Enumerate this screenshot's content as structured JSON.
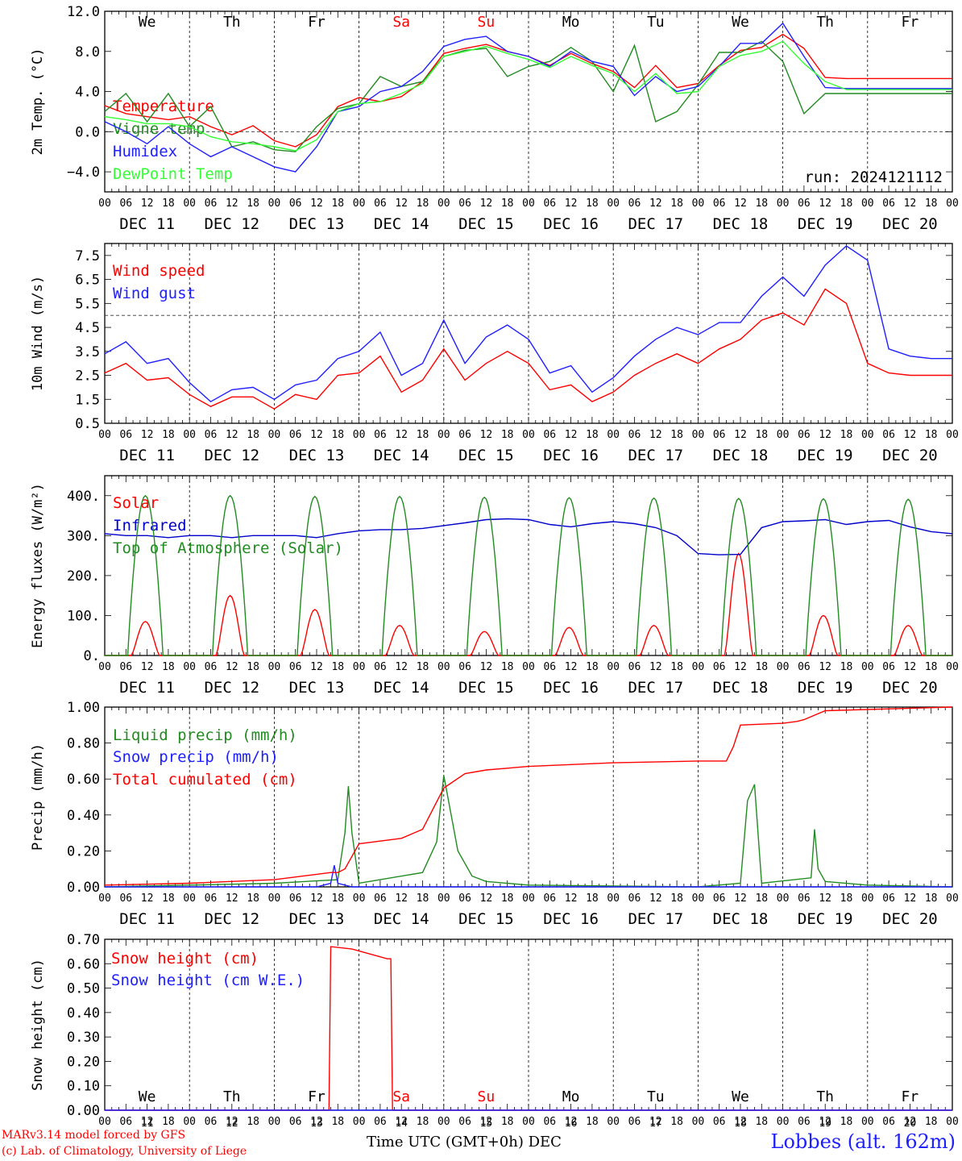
{
  "chart_data": [
    {
      "type": "line",
      "ylabel": "2m Temp. (°C)",
      "ylim": [
        -6,
        12
      ],
      "yticks": [
        -4.0,
        0.0,
        4.0,
        8.0,
        12.0
      ],
      "ytick_labels": [
        "−4.0",
        "0.0",
        "4.0",
        "8.0",
        "12.0"
      ],
      "reference_line": 0,
      "annotation": "run: 2024121112",
      "weekday_row": "top",
      "series": [
        {
          "name": "Temperature",
          "color": "#ff0000",
          "x": [
            0,
            6,
            12,
            18,
            24,
            30,
            36,
            42,
            48,
            54,
            60,
            66,
            72,
            78,
            84,
            90,
            96,
            102,
            108,
            114,
            120,
            126,
            132,
            138,
            144,
            150,
            156,
            162,
            168,
            174,
            180,
            186,
            192,
            198,
            204,
            210,
            216,
            222,
            228,
            234,
            240
          ],
          "values": [
            2.6,
            1.8,
            1.5,
            1.2,
            1.5,
            0.5,
            -0.3,
            0.6,
            -0.9,
            -1.5,
            -0.3,
            2.5,
            3.4,
            3.0,
            3.5,
            5.0,
            7.8,
            8.3,
            8.7,
            8.0,
            7.5,
            6.6,
            7.8,
            6.8,
            6.0,
            4.4,
            6.6,
            4.4,
            4.8,
            6.6,
            8.1,
            8.4,
            9.7,
            8.3,
            5.4,
            5.3,
            5.3,
            5.3,
            5.3,
            5.3,
            5.3
          ]
        },
        {
          "name": "Vigne temp",
          "color": "#228b22",
          "x": [
            0,
            6,
            12,
            18,
            24,
            30,
            36,
            42,
            48,
            54,
            60,
            66,
            72,
            78,
            84,
            90,
            96,
            102,
            108,
            114,
            120,
            126,
            132,
            138,
            144,
            150,
            156,
            162,
            168,
            174,
            180,
            186,
            192,
            198,
            204,
            210,
            216,
            222,
            228,
            234,
            240
          ],
          "values": [
            2.0,
            3.8,
            1.0,
            3.8,
            0.5,
            2.5,
            -1.5,
            -1.0,
            -1.8,
            -2.0,
            0.5,
            2.3,
            2.8,
            5.5,
            4.5,
            5.0,
            7.5,
            8.1,
            8.3,
            5.5,
            6.5,
            7.0,
            8.4,
            7.0,
            4.0,
            8.6,
            1.0,
            2.0,
            4.7,
            7.9,
            7.9,
            9.0,
            7.0,
            1.8,
            3.8,
            3.8,
            3.8,
            3.8,
            3.8,
            3.8,
            3.8
          ]
        },
        {
          "name": "Humidex",
          "color": "#2020ff",
          "x": [
            0,
            6,
            12,
            18,
            24,
            30,
            36,
            42,
            48,
            54,
            60,
            66,
            72,
            78,
            84,
            90,
            96,
            102,
            108,
            114,
            120,
            126,
            132,
            138,
            144,
            150,
            156,
            162,
            168,
            174,
            180,
            186,
            192,
            198,
            204,
            210,
            216,
            222,
            228,
            234,
            240
          ],
          "values": [
            1.0,
            0.0,
            -1.2,
            0.5,
            -1.2,
            -2.5,
            -1.5,
            -2.5,
            -3.5,
            -4.0,
            -1.5,
            2.0,
            2.5,
            4.0,
            4.5,
            6.0,
            8.5,
            9.2,
            9.5,
            8.0,
            7.5,
            6.5,
            8.0,
            7.0,
            6.5,
            3.6,
            5.5,
            4.0,
            4.5,
            6.5,
            8.8,
            8.8,
            10.8,
            7.5,
            4.4,
            4.3,
            4.3,
            4.3,
            4.3,
            4.3,
            4.3
          ]
        },
        {
          "name": "DewPoint Temp",
          "color": "#33ff33",
          "x": [
            0,
            6,
            12,
            18,
            24,
            30,
            36,
            42,
            48,
            54,
            60,
            66,
            72,
            78,
            84,
            90,
            96,
            102,
            108,
            114,
            120,
            126,
            132,
            138,
            144,
            150,
            156,
            162,
            168,
            174,
            180,
            186,
            192,
            198,
            204,
            210,
            216,
            222,
            228,
            234,
            240
          ],
          "values": [
            1.5,
            1.2,
            0.8,
            0.8,
            0.5,
            -0.5,
            -1.0,
            -1.2,
            -1.5,
            -1.9,
            -0.8,
            2.0,
            2.8,
            3.0,
            3.8,
            4.8,
            7.5,
            8.0,
            8.5,
            7.8,
            7.2,
            6.4,
            7.5,
            6.6,
            5.8,
            4.0,
            5.8,
            3.8,
            4.0,
            6.5,
            7.6,
            8.0,
            9.0,
            6.8,
            5.0,
            4.2,
            4.2,
            4.2,
            4.2,
            4.2,
            4.2
          ]
        }
      ]
    },
    {
      "type": "line",
      "ylabel": "10m Wind (m/s)",
      "ylim": [
        0.5,
        8
      ],
      "yticks": [
        0.5,
        1.5,
        2.5,
        3.5,
        4.5,
        5.5,
        6.5,
        7.5
      ],
      "reference_line": 5,
      "series": [
        {
          "name": "Wind speed",
          "color": "#ff0000",
          "x": [
            0,
            6,
            12,
            18,
            24,
            30,
            36,
            42,
            48,
            54,
            60,
            66,
            72,
            78,
            84,
            90,
            96,
            102,
            108,
            114,
            120,
            126,
            132,
            138,
            144,
            150,
            156,
            162,
            168,
            174,
            180,
            186,
            192,
            198,
            204,
            210,
            216,
            222,
            228,
            234,
            240
          ],
          "values": [
            2.6,
            3.0,
            2.3,
            2.4,
            1.7,
            1.2,
            1.6,
            1.6,
            1.1,
            1.7,
            1.5,
            2.5,
            2.6,
            3.3,
            1.8,
            2.3,
            3.6,
            2.3,
            3.0,
            3.5,
            3.0,
            1.9,
            2.1,
            1.4,
            1.8,
            2.5,
            3.0,
            3.4,
            3.0,
            3.6,
            4.0,
            4.8,
            5.1,
            4.6,
            6.1,
            5.5,
            3.0,
            2.6,
            2.5,
            2.5,
            2.5
          ]
        },
        {
          "name": "Wind gust",
          "color": "#2020ff",
          "x": [
            0,
            6,
            12,
            18,
            24,
            30,
            36,
            42,
            48,
            54,
            60,
            66,
            72,
            78,
            84,
            90,
            96,
            102,
            108,
            114,
            120,
            126,
            132,
            138,
            144,
            150,
            156,
            162,
            168,
            174,
            180,
            186,
            192,
            198,
            204,
            210,
            216,
            222,
            228,
            234,
            240
          ],
          "values": [
            3.4,
            3.9,
            3.0,
            3.2,
            2.2,
            1.4,
            1.9,
            2.0,
            1.5,
            2.1,
            2.3,
            3.2,
            3.5,
            4.3,
            2.5,
            3.0,
            4.8,
            3.0,
            4.1,
            4.6,
            4.0,
            2.6,
            2.9,
            1.8,
            2.4,
            3.3,
            4.0,
            4.5,
            4.2,
            4.7,
            4.7,
            5.8,
            6.6,
            5.8,
            7.1,
            7.9,
            7.3,
            3.6,
            3.3,
            3.2,
            3.2
          ]
        }
      ]
    },
    {
      "type": "line",
      "ylabel": "Energy fluxes (W/m²)",
      "ylim": [
        0,
        450
      ],
      "yticks": [
        0,
        100,
        200,
        300,
        400
      ],
      "ytick_labels": [
        "0.",
        "100.",
        "200.",
        "300.",
        "400."
      ],
      "series": [
        {
          "name": "Solar",
          "color": "#ff0000",
          "daily_peak": [
            85,
            150,
            115,
            75,
            60,
            70,
            75,
            255,
            100,
            75
          ]
        },
        {
          "name": "Infrared",
          "color": "#0000cc",
          "x": [
            0,
            6,
            12,
            18,
            24,
            30,
            36,
            42,
            48,
            54,
            60,
            66,
            72,
            78,
            84,
            90,
            96,
            102,
            108,
            114,
            120,
            126,
            132,
            138,
            144,
            150,
            156,
            162,
            168,
            174,
            180,
            186,
            192,
            198,
            204,
            210,
            216,
            222,
            228,
            234,
            240
          ],
          "values": [
            305,
            300,
            300,
            295,
            300,
            300,
            295,
            300,
            300,
            300,
            295,
            305,
            312,
            315,
            315,
            318,
            325,
            332,
            340,
            342,
            340,
            328,
            322,
            330,
            335,
            330,
            320,
            300,
            255,
            252,
            253,
            320,
            335,
            337,
            340,
            328,
            335,
            338,
            322,
            310,
            305
          ]
        },
        {
          "name": "Top of Atmosphere (Solar)",
          "color": "#228b22",
          "daily_peak": [
            400,
            400,
            398,
            398,
            396,
            395,
            394,
            393,
            392,
            391
          ]
        }
      ]
    },
    {
      "type": "line",
      "ylabel": "Precip (mm/h)",
      "ylim": [
        0,
        1
      ],
      "yticks": [
        0,
        0.2,
        0.4,
        0.6,
        0.8,
        1.0
      ],
      "ytick_labels": [
        "0.00",
        "0.20",
        "0.40",
        "0.60",
        "0.80",
        "1.00"
      ],
      "series": [
        {
          "name": "Liquid precip (mm/h)",
          "color": "#228b22",
          "x": [
            0,
            24,
            48,
            66,
            68,
            69,
            70,
            72,
            90,
            94,
            96,
            100,
            104,
            108,
            120,
            168,
            180,
            182,
            184,
            186,
            200,
            201,
            202,
            204,
            216,
            240
          ],
          "values": [
            0,
            0.01,
            0.02,
            0.04,
            0.3,
            0.56,
            0.3,
            0.02,
            0.08,
            0.25,
            0.62,
            0.2,
            0.06,
            0.03,
            0.01,
            0,
            0.02,
            0.48,
            0.57,
            0.02,
            0.05,
            0.32,
            0.1,
            0.03,
            0.01,
            0
          ]
        },
        {
          "name": "Snow precip (mm/h)",
          "color": "#2020ff",
          "x": [
            0,
            60,
            64,
            65,
            66,
            70,
            240
          ],
          "values": [
            0,
            0,
            0.02,
            0.12,
            0.02,
            0,
            0
          ]
        },
        {
          "name": "Total cumulated (cm)",
          "color": "#ff0000",
          "x": [
            0,
            24,
            48,
            60,
            64,
            66,
            68,
            72,
            84,
            90,
            96,
            102,
            108,
            120,
            144,
            168,
            176,
            178,
            180,
            192,
            196,
            198,
            204,
            240
          ],
          "values": [
            0.01,
            0.02,
            0.04,
            0.07,
            0.08,
            0.08,
            0.1,
            0.24,
            0.27,
            0.32,
            0.55,
            0.63,
            0.65,
            0.67,
            0.69,
            0.7,
            0.7,
            0.78,
            0.9,
            0.91,
            0.92,
            0.93,
            0.98,
            1.0
          ]
        }
      ]
    },
    {
      "type": "line",
      "ylabel": "Snow height (cm)",
      "ylim": [
        0,
        0.7
      ],
      "yticks": [
        0,
        0.1,
        0.2,
        0.3,
        0.4,
        0.5,
        0.6,
        0.7
      ],
      "ytick_labels": [
        "0.00",
        "0.10",
        "0.20",
        "0.30",
        "0.40",
        "0.50",
        "0.60",
        "0.70"
      ],
      "weekday_row": "bottom",
      "series": [
        {
          "name": "Snow height (cm)",
          "color": "#ff0000",
          "x": [
            0,
            63.5,
            64,
            70,
            80,
            81,
            81.5,
            240
          ],
          "values": [
            0,
            0,
            0.67,
            0.66,
            0.62,
            0.62,
            0,
            0
          ]
        },
        {
          "name": "Snow height (cm W.E.)",
          "color": "#2020ff",
          "x": [
            0,
            240
          ],
          "values": [
            0,
            0
          ]
        }
      ]
    }
  ],
  "axis": {
    "hour_labels": [
      "00",
      "06",
      "12",
      "18"
    ],
    "end_label": "00",
    "dates": [
      "DEC 11",
      "DEC 12",
      "DEC 13",
      "DEC 14",
      "DEC 15",
      "DEC 16",
      "DEC 17",
      "DEC 18",
      "DEC 19",
      "DEC 20"
    ],
    "weekdays": [
      "We",
      "Th",
      "Fr",
      "Sa",
      "Su",
      "Mo",
      "Tu",
      "We",
      "Th",
      "Fr"
    ],
    "weekday_colors": [
      "#000000",
      "#000000",
      "#000000",
      "#ff0000",
      "#ff0000",
      "#000000",
      "#000000",
      "#000000",
      "#000000",
      "#000000"
    ],
    "day_numbers": [
      "11",
      "12",
      "13",
      "14",
      "15",
      "16",
      "17",
      "18",
      "19",
      "20"
    ],
    "title": "Time UTC (GMT+0h)",
    "month": "DEC"
  },
  "footer": {
    "model_line": "MARv3.14 model forced by GFS",
    "copyright_line": "(c) Lab. of Climatology, University of Liege",
    "station": "Lobbes (alt. 162m)"
  }
}
